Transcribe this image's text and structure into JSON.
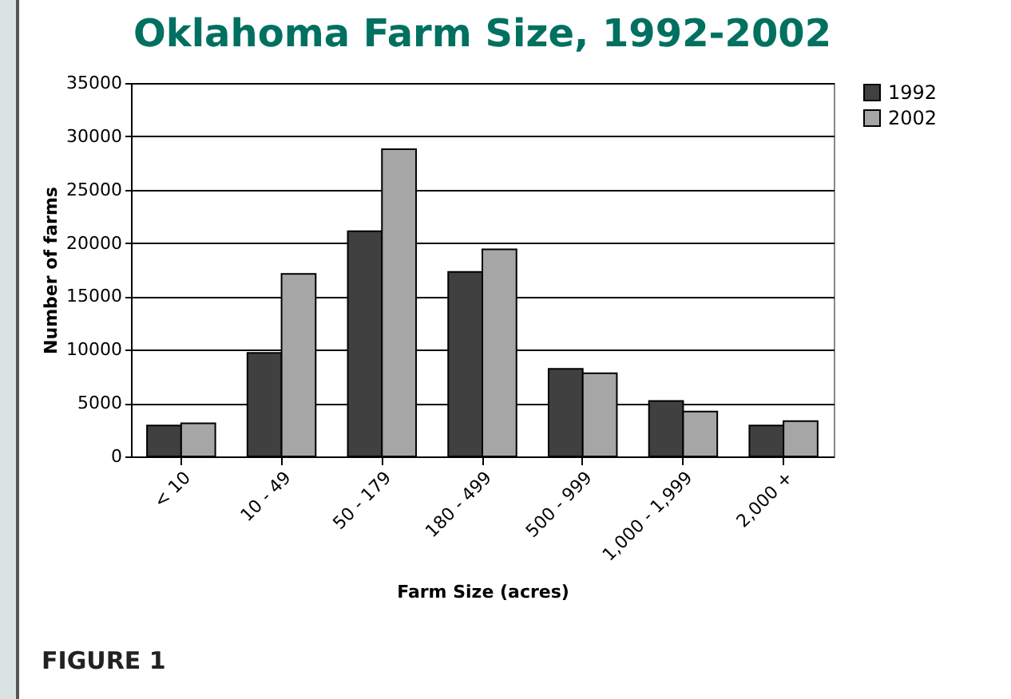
{
  "chart_data": {
    "type": "bar",
    "title": "Oklahoma Farm Size, 1992-2002",
    "xlabel": "Farm Size (acres)",
    "ylabel": "Number of farms",
    "categories": [
      "< 10",
      "10 - 49",
      "50 - 179",
      "180 - 499",
      "500 - 999",
      "1,000 - 1,999",
      "2,000 +"
    ],
    "series": [
      {
        "name": "1992",
        "color": "#404040",
        "values": [
          2900,
          9700,
          21100,
          17300,
          8200,
          5200,
          2900
        ]
      },
      {
        "name": "2002",
        "color": "#a6a6a6",
        "values": [
          3100,
          17100,
          28800,
          19400,
          7800,
          4200,
          3300
        ]
      }
    ],
    "ylim": [
      0,
      35000
    ],
    "yticks": [
      0,
      5000,
      10000,
      15000,
      20000,
      25000,
      30000,
      35000
    ],
    "grid": "y",
    "legend": "right",
    "annotations": [
      "FIGURE 1"
    ]
  }
}
